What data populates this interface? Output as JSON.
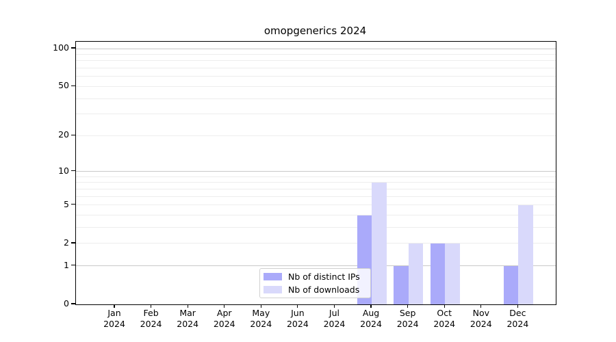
{
  "title": "omopgenerics 2024",
  "colors": {
    "ips": "#aaaafa",
    "downloads": "#d9d9fb",
    "grid_major": "#c9c9c9",
    "grid_minor": "#ededed",
    "axis": "#000000",
    "background": "#ffffff",
    "legend_border": "#d0d0d0"
  },
  "legend": {
    "items": [
      {
        "label": "Nb of distinct IPs",
        "color_key": "ips"
      },
      {
        "label": "Nb of downloads",
        "color_key": "downloads"
      }
    ]
  },
  "chart_data": {
    "type": "bar",
    "scale": "log1p",
    "title": "omopgenerics 2024",
    "xlabel": "",
    "ylabel": "",
    "ylim": [
      0,
      100
    ],
    "year_label": "2024",
    "categories": [
      "Jan",
      "Feb",
      "Mar",
      "Apr",
      "May",
      "Jun",
      "Jul",
      "Aug",
      "Sep",
      "Oct",
      "Nov",
      "Dec"
    ],
    "series": [
      {
        "name": "Nb of distinct IPs",
        "color_key": "ips",
        "values": [
          0,
          0,
          0,
          0,
          0,
          0,
          0,
          4,
          1,
          2,
          0,
          1
        ]
      },
      {
        "name": "Nb of downloads",
        "color_key": "downloads",
        "values": [
          0,
          0,
          0,
          0,
          0,
          0,
          0,
          8,
          2,
          2,
          0,
          5
        ]
      }
    ],
    "ytick_labels": [
      0,
      1,
      2,
      5,
      10,
      20,
      50,
      100
    ],
    "grid_major": [
      1,
      10,
      100
    ],
    "grid_minor": [
      2,
      3,
      4,
      5,
      6,
      7,
      8,
      9,
      20,
      30,
      40,
      50,
      60,
      70,
      80,
      90
    ],
    "legend_position": "bottom-center-inside",
    "grid": "on"
  }
}
